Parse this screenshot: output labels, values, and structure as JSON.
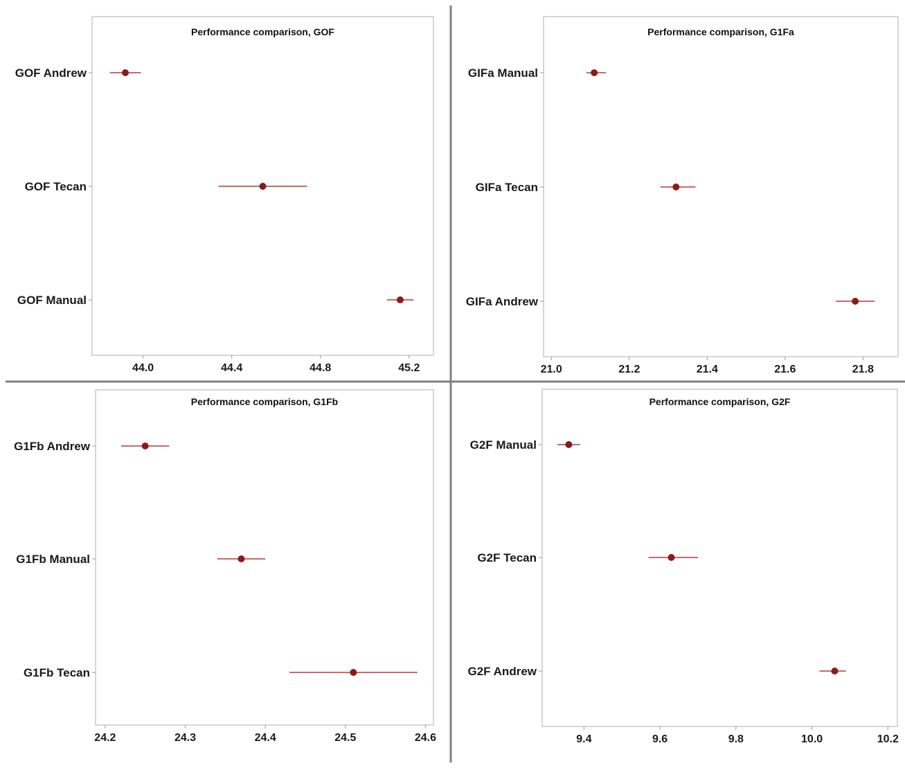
{
  "colors": {
    "marker": "#8b1a1a",
    "interval": "#b23a3a",
    "frame": "#c8c8c8",
    "divider": "#808080"
  },
  "chart_data": [
    {
      "type": "interval",
      "title": "Performance comparison, GOF",
      "xlabel": "",
      "ylabel": "",
      "xlim": [
        43.77,
        45.31
      ],
      "xticks": [
        44.0,
        44.4,
        44.8,
        45.2
      ],
      "xtick_labels": [
        "44.0",
        "44.4",
        "44.8",
        "45.2"
      ],
      "grid": false,
      "points": [
        {
          "label": "GOF Andrew",
          "mean": 43.92,
          "lower": 43.85,
          "upper": 43.99
        },
        {
          "label": "GOF Tecan",
          "mean": 44.54,
          "lower": 44.34,
          "upper": 44.74
        },
        {
          "label": "GOF Manual",
          "mean": 45.16,
          "lower": 45.1,
          "upper": 45.22
        }
      ]
    },
    {
      "type": "interval",
      "title": "Performance comparison, G1Fa",
      "xlabel": "",
      "ylabel": "",
      "xlim": [
        20.98,
        21.89
      ],
      "xticks": [
        21.0,
        21.2,
        21.4,
        21.6,
        21.8
      ],
      "xtick_labels": [
        "21.0",
        "21.2",
        "21.4",
        "21.6",
        "21.8"
      ],
      "grid": false,
      "points": [
        {
          "label": "GIFa Manual",
          "mean": 21.11,
          "lower": 21.09,
          "upper": 21.14
        },
        {
          "label": "GIFa Tecan",
          "mean": 21.32,
          "lower": 21.28,
          "upper": 21.37
        },
        {
          "label": "GIFa Andrew",
          "mean": 21.78,
          "lower": 21.73,
          "upper": 21.83
        }
      ]
    },
    {
      "type": "interval",
      "title": "Performance comparison, G1Fb",
      "xlabel": "",
      "ylabel": "",
      "xlim": [
        24.188,
        24.61
      ],
      "xticks": [
        24.2,
        24.3,
        24.4,
        24.5,
        24.6
      ],
      "xtick_labels": [
        "24.2",
        "24.3",
        "24.4",
        "24.5",
        "24.6"
      ],
      "grid": false,
      "points": [
        {
          "label": "G1Fb Andrew",
          "mean": 24.25,
          "lower": 24.22,
          "upper": 24.28
        },
        {
          "label": "G1Fb Manual",
          "mean": 24.37,
          "lower": 24.34,
          "upper": 24.4
        },
        {
          "label": "G1Fb Tecan",
          "mean": 24.51,
          "lower": 24.43,
          "upper": 24.59
        }
      ]
    },
    {
      "type": "interval",
      "title": "Performance comparison, G2F",
      "xlabel": "",
      "ylabel": "",
      "xlim": [
        9.29,
        10.225
      ],
      "xticks": [
        9.4,
        9.6,
        9.8,
        10.0,
        10.2
      ],
      "xtick_labels": [
        "9.4",
        "9.6",
        "9.8",
        "10.0",
        "10.2"
      ],
      "grid": false,
      "points": [
        {
          "label": "G2F Manual",
          "mean": 9.36,
          "lower": 9.33,
          "upper": 9.39
        },
        {
          "label": "G2F Tecan",
          "mean": 9.63,
          "lower": 9.57,
          "upper": 9.7
        },
        {
          "label": "G2F Andrew",
          "mean": 10.06,
          "lower": 10.02,
          "upper": 10.09
        }
      ]
    }
  ]
}
